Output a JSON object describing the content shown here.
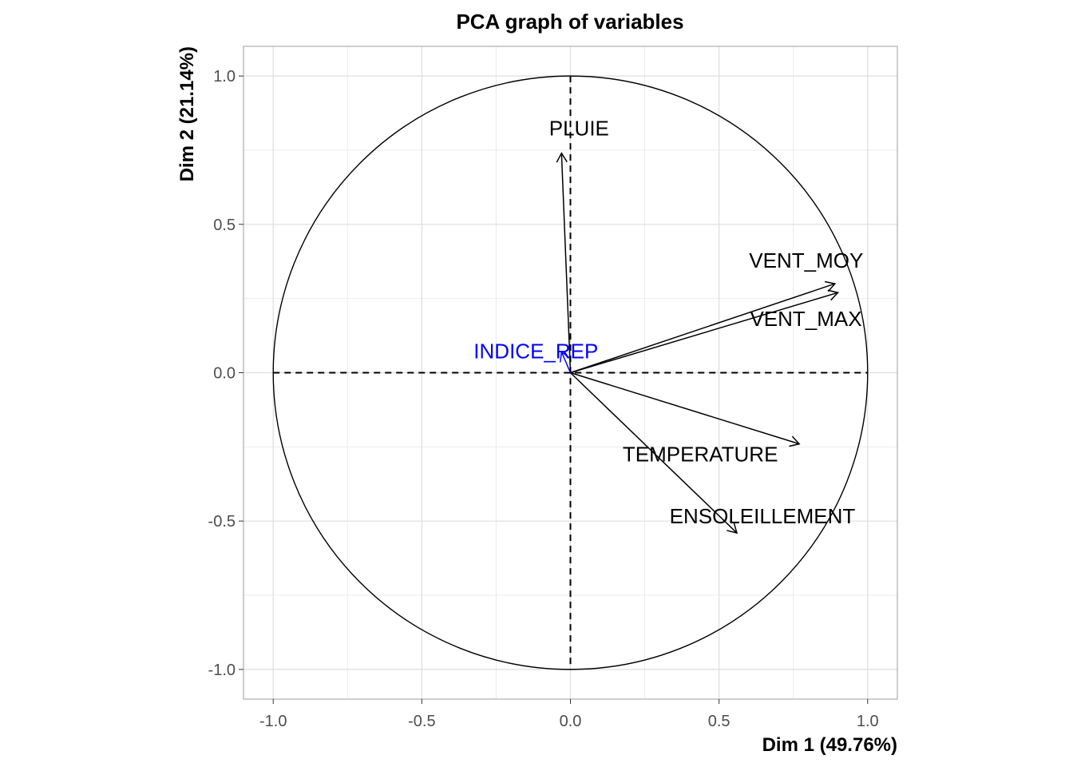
{
  "chart_data": {
    "type": "scatter",
    "title": "PCA graph of variables",
    "xlabel": "Dim 1 (49.76%)",
    "ylabel": "Dim 2 (21.14%)",
    "xlim": [
      -1.1,
      1.1
    ],
    "ylim": [
      -1.1,
      1.1
    ],
    "xticks": [
      -1.0,
      -0.5,
      0.0,
      0.5,
      1.0
    ],
    "yticks": [
      -1.0,
      -0.5,
      0.0,
      0.5,
      1.0
    ],
    "xtick_labels": [
      "-1.0",
      "-0.5",
      "0.0",
      "0.5",
      "1.0"
    ],
    "ytick_labels": [
      "-1.0",
      "-0.5",
      "0.0",
      "0.5",
      "1.0"
    ],
    "grid": true,
    "unit_circle": true,
    "variables": [
      {
        "name": "PLUIE",
        "x": -0.03,
        "y": 0.74,
        "color": "#000000",
        "supplementary": false
      },
      {
        "name": "VENT_MOY",
        "x": 0.89,
        "y": 0.3,
        "color": "#000000",
        "supplementary": false
      },
      {
        "name": "VENT_MAX",
        "x": 0.9,
        "y": 0.27,
        "color": "#000000",
        "supplementary": false
      },
      {
        "name": "TEMPERATURE",
        "x": 0.77,
        "y": -0.24,
        "color": "#000000",
        "supplementary": false
      },
      {
        "name": "ENSOLEILLEMENT",
        "x": 0.56,
        "y": -0.54,
        "color": "#000000",
        "supplementary": false
      },
      {
        "name": "INDICE_REP",
        "x": -0.03,
        "y": 0.07,
        "color": "#0000ff",
        "supplementary": true
      }
    ]
  }
}
